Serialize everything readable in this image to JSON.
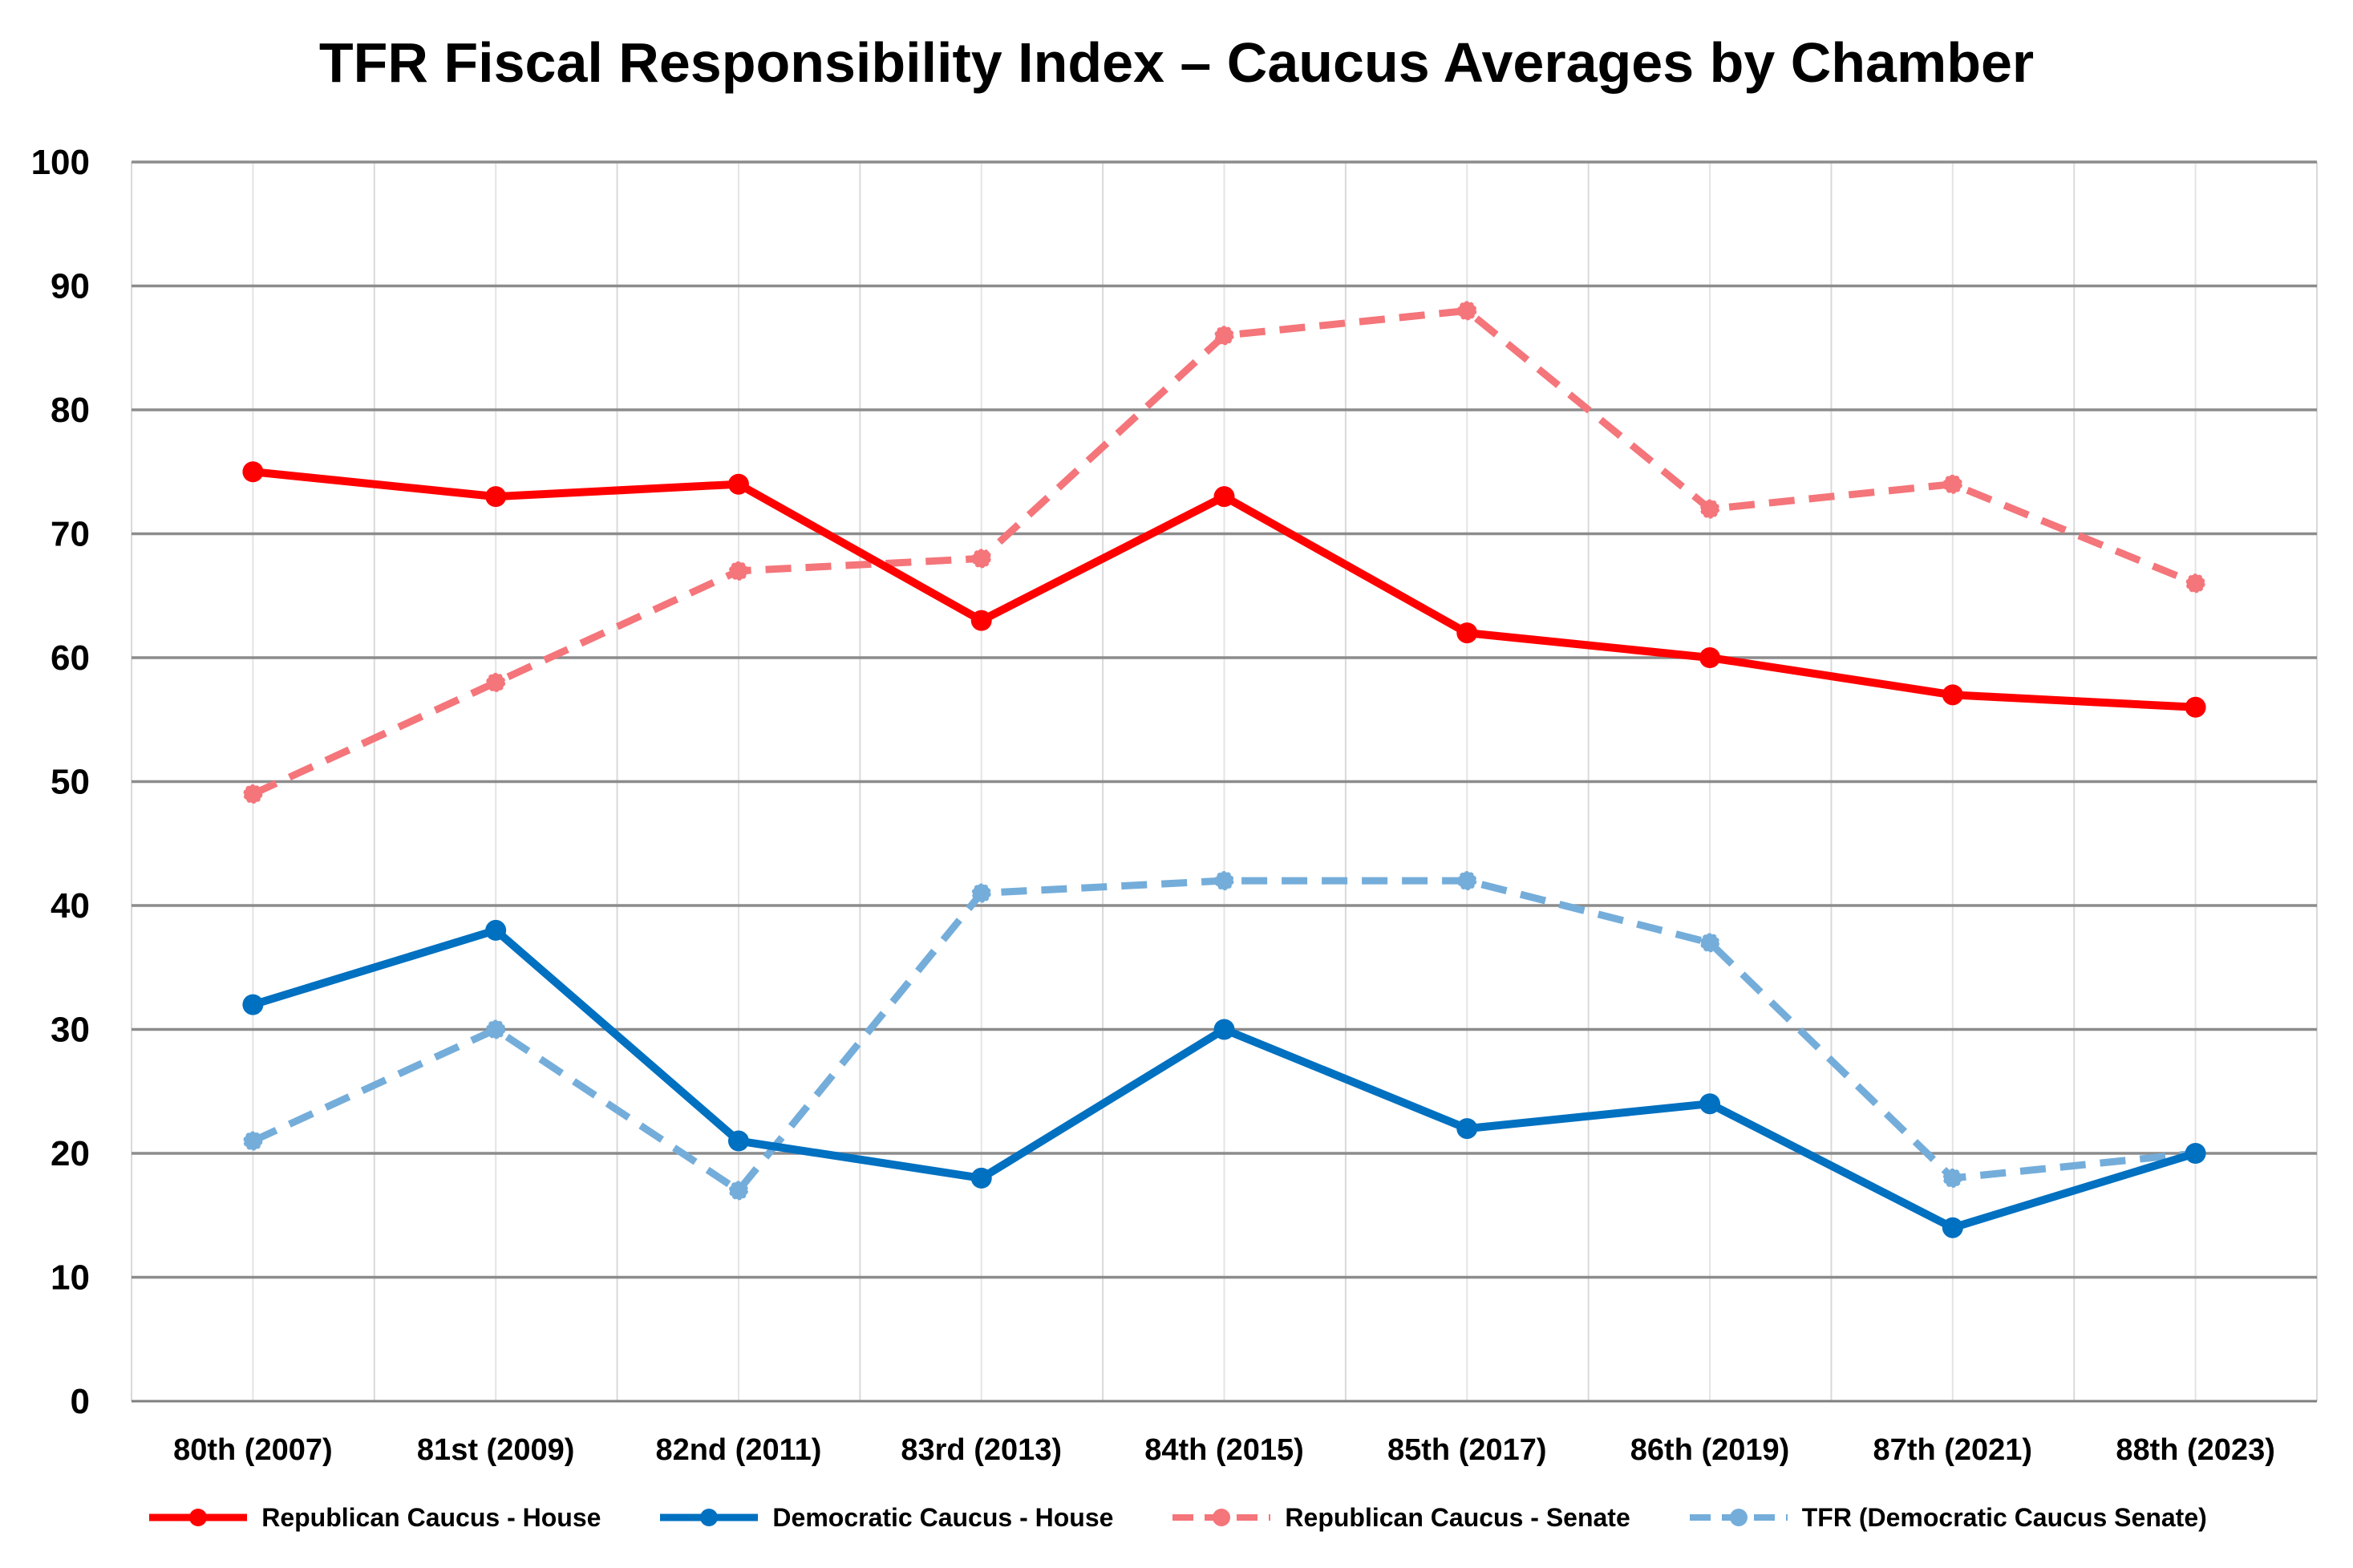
{
  "chart_data": {
    "type": "line",
    "title": "TFR Fiscal Responsibility Index – Caucus Averages by Chamber",
    "xlabel": "",
    "ylabel": "",
    "ylim": [
      0,
      100
    ],
    "yticks": [
      0,
      10,
      20,
      30,
      40,
      50,
      60,
      70,
      80,
      90,
      100
    ],
    "grid": true,
    "legend_position": "bottom",
    "categories": [
      "80th (2007)",
      "81st (2009)",
      "82nd (2011)",
      "83rd (2013)",
      "84th (2015)",
      "85th (2017)",
      "86th (2019)",
      "87th (2021)",
      "88th (2023)"
    ],
    "series": [
      {
        "name": "Republican Caucus - House",
        "color": "#FF0000",
        "style": "solid",
        "values": [
          75,
          73,
          74,
          63,
          73,
          62,
          60,
          57,
          56
        ]
      },
      {
        "name": "Democratic Caucus - House",
        "color": "#0070C0",
        "style": "solid",
        "values": [
          32,
          38,
          21,
          18,
          30,
          22,
          24,
          14,
          20
        ]
      },
      {
        "name": "Republican Caucus - Senate",
        "color": "#F4757A",
        "style": "dashed",
        "values": [
          49,
          58,
          67,
          68,
          86,
          88,
          72,
          74,
          66
        ]
      },
      {
        "name": "TFR (Democratic Caucus Senate)",
        "color": "#74ADDA",
        "style": "dashed",
        "values": [
          21,
          30,
          17,
          41,
          42,
          42,
          37,
          18,
          20
        ]
      }
    ]
  }
}
